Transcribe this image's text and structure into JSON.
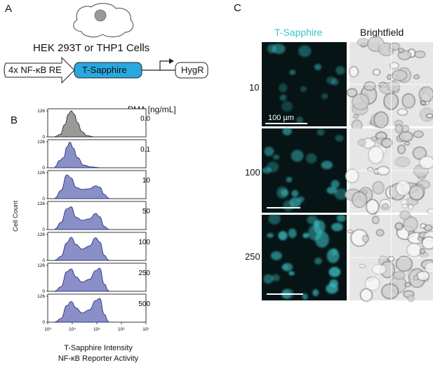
{
  "panels": {
    "a": "A",
    "b": "B",
    "c": "C"
  },
  "construct": {
    "cell_line": "HEK 293T  or THP1 Cells",
    "response_element": "4x NF-κB RE",
    "reporter": "T-Sapphire",
    "resistance": "HygR"
  },
  "histograms": {
    "legend_title": "PMA [ng/mL]",
    "ylabel": "Cell Count",
    "xlabel_line1": "T-Sapphire Intensity",
    "xlabel_line2": "NF-κB Reporter Activity",
    "ymax_label": "126",
    "ymin_label": "0",
    "xtick_labels": [
      "10³",
      "10⁴",
      "10⁵",
      "10⁶",
      "10⁷"
    ],
    "gray_color": "#9a9a9a",
    "purple_color": "#8a8fc7"
  },
  "chart_data": {
    "type": "area",
    "title": "",
    "ylabel": "Cell Count",
    "xlabel": "T-Sapphire Intensity / NF-κB Reporter Activity",
    "ylim": [
      0,
      126
    ],
    "xscale": "log",
    "xlim": [
      1000,
      10000000
    ],
    "series": [
      {
        "name": "0.0",
        "x": [
          2000,
          3200,
          5000,
          7000,
          9000,
          12000,
          16000,
          25000,
          40000,
          70000
        ],
        "values": [
          2,
          12,
          60,
          110,
          126,
          110,
          70,
          25,
          6,
          1
        ]
      },
      {
        "name": "0.1",
        "x": [
          2000,
          3000,
          4500,
          6000,
          8000,
          11000,
          16000,
          30000,
          60000,
          120000
        ],
        "values": [
          5,
          35,
          50,
          100,
          125,
          95,
          50,
          12,
          4,
          1
        ]
      },
      {
        "name": "10",
        "x": [
          2000,
          3500,
          6000,
          9000,
          14000,
          25000,
          50000,
          90000,
          130000,
          200000,
          300000
        ],
        "values": [
          3,
          40,
          115,
          100,
          55,
          45,
          48,
          62,
          56,
          20,
          3
        ]
      },
      {
        "name": "50",
        "x": [
          2000,
          3500,
          6000,
          9000,
          14000,
          25000,
          50000,
          90000,
          130000,
          200000,
          300000
        ],
        "values": [
          3,
          35,
          100,
          110,
          60,
          45,
          52,
          78,
          62,
          15,
          2
        ]
      },
      {
        "name": "100",
        "x": [
          2000,
          3500,
          6000,
          9000,
          14000,
          25000,
          50000,
          90000,
          130000,
          200000,
          300000
        ],
        "values": [
          2,
          20,
          85,
          112,
          78,
          55,
          70,
          110,
          90,
          25,
          2
        ]
      },
      {
        "name": "250",
        "x": [
          2000,
          3500,
          6000,
          9000,
          14000,
          25000,
          50000,
          90000,
          130000,
          200000,
          300000
        ],
        "values": [
          2,
          22,
          95,
          108,
          70,
          45,
          58,
          100,
          112,
          35,
          3
        ]
      },
      {
        "name": "500",
        "x": [
          2000,
          3500,
          6000,
          9000,
          14000,
          25000,
          50000,
          90000,
          130000,
          200000,
          300000
        ],
        "values": [
          2,
          18,
          80,
          100,
          70,
          45,
          60,
          105,
          116,
          38,
          3
        ]
      }
    ]
  },
  "microscopy": {
    "col1": "T-Sapphire",
    "col2": "Brightfield",
    "rows": [
      "10",
      "100",
      "250"
    ],
    "scalebar": "100 µm",
    "cyan": "#3ec4c8"
  }
}
